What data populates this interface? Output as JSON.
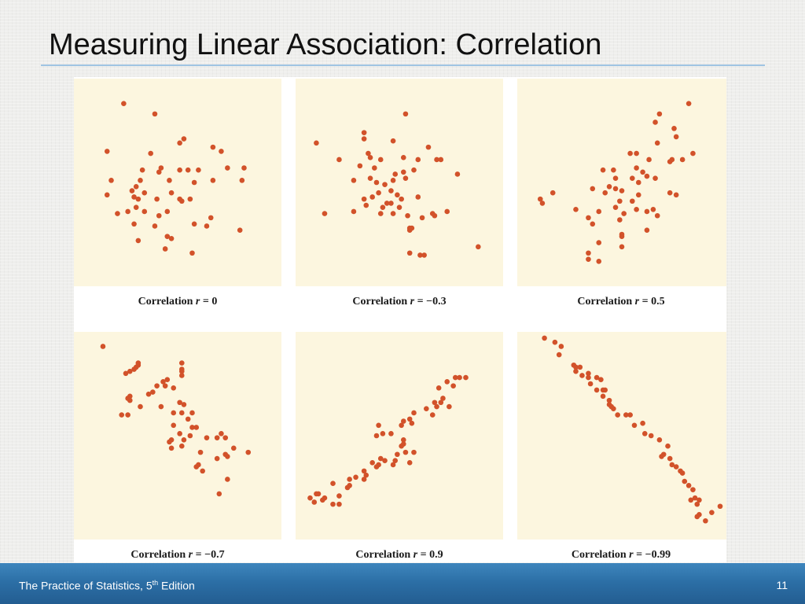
{
  "slide": {
    "title": "Measuring Linear Association: Correlation"
  },
  "footer": {
    "text": "The Practice of Statistics, 5",
    "superscript": "th",
    "text_suffix": " Edition",
    "page_number": "11"
  },
  "colors": {
    "point": "#d2522a",
    "panel_background": "#fcf6df",
    "footer_blue": "#2c6fa6",
    "title_rule": "#9fc4e3"
  },
  "chart_data": [
    {
      "type": "scatter",
      "caption_prefix": "Correlation ",
      "caption_var": "r",
      "caption_eq": " = 0",
      "xlim": [
        0,
        1
      ],
      "ylim": [
        0,
        1
      ],
      "points": [
        [
          0.24,
          0.88
        ],
        [
          0.39,
          0.83
        ],
        [
          0.53,
          0.71
        ],
        [
          0.51,
          0.69
        ],
        [
          0.67,
          0.67
        ],
        [
          0.71,
          0.65
        ],
        [
          0.16,
          0.65
        ],
        [
          0.37,
          0.64
        ],
        [
          0.74,
          0.57
        ],
        [
          0.82,
          0.57
        ],
        [
          0.33,
          0.56
        ],
        [
          0.42,
          0.57
        ],
        [
          0.41,
          0.55
        ],
        [
          0.51,
          0.56
        ],
        [
          0.55,
          0.56
        ],
        [
          0.6,
          0.56
        ],
        [
          0.18,
          0.51
        ],
        [
          0.32,
          0.51
        ],
        [
          0.46,
          0.51
        ],
        [
          0.58,
          0.5
        ],
        [
          0.67,
          0.51
        ],
        [
          0.81,
          0.51
        ],
        [
          0.3,
          0.48
        ],
        [
          0.28,
          0.46
        ],
        [
          0.34,
          0.45
        ],
        [
          0.47,
          0.45
        ],
        [
          0.16,
          0.44
        ],
        [
          0.29,
          0.43
        ],
        [
          0.31,
          0.42
        ],
        [
          0.51,
          0.42
        ],
        [
          0.52,
          0.41
        ],
        [
          0.4,
          0.42
        ],
        [
          0.56,
          0.42
        ],
        [
          0.3,
          0.38
        ],
        [
          0.26,
          0.36
        ],
        [
          0.34,
          0.36
        ],
        [
          0.21,
          0.35
        ],
        [
          0.41,
          0.34
        ],
        [
          0.45,
          0.36
        ],
        [
          0.29,
          0.3
        ],
        [
          0.39,
          0.29
        ],
        [
          0.58,
          0.3
        ],
        [
          0.64,
          0.29
        ],
        [
          0.66,
          0.33
        ],
        [
          0.8,
          0.27
        ],
        [
          0.45,
          0.24
        ],
        [
          0.47,
          0.23
        ],
        [
          0.31,
          0.22
        ],
        [
          0.57,
          0.16
        ],
        [
          0.44,
          0.18
        ]
      ]
    },
    {
      "type": "scatter",
      "caption_prefix": "Correlation ",
      "caption_var": "r",
      "caption_eq": " = −0.3",
      "xlim": [
        0,
        1
      ],
      "ylim": [
        0,
        1
      ],
      "points": [
        [
          0.53,
          0.83
        ],
        [
          0.33,
          0.74
        ],
        [
          0.33,
          0.71
        ],
        [
          0.35,
          0.64
        ],
        [
          0.36,
          0.62
        ],
        [
          0.52,
          0.62
        ],
        [
          0.41,
          0.61
        ],
        [
          0.47,
          0.7
        ],
        [
          0.1,
          0.69
        ],
        [
          0.64,
          0.67
        ],
        [
          0.59,
          0.61
        ],
        [
          0.68,
          0.61
        ],
        [
          0.7,
          0.61
        ],
        [
          0.21,
          0.61
        ],
        [
          0.31,
          0.58
        ],
        [
          0.38,
          0.57
        ],
        [
          0.52,
          0.55
        ],
        [
          0.57,
          0.56
        ],
        [
          0.36,
          0.52
        ],
        [
          0.48,
          0.54
        ],
        [
          0.53,
          0.52
        ],
        [
          0.78,
          0.54
        ],
        [
          0.47,
          0.51
        ],
        [
          0.39,
          0.5
        ],
        [
          0.43,
          0.49
        ],
        [
          0.28,
          0.51
        ],
        [
          0.4,
          0.45
        ],
        [
          0.46,
          0.46
        ],
        [
          0.49,
          0.44
        ],
        [
          0.46,
          0.4
        ],
        [
          0.37,
          0.43
        ],
        [
          0.51,
          0.42
        ],
        [
          0.59,
          0.43
        ],
        [
          0.33,
          0.42
        ],
        [
          0.44,
          0.4
        ],
        [
          0.42,
          0.38
        ],
        [
          0.5,
          0.38
        ],
        [
          0.34,
          0.39
        ],
        [
          0.66,
          0.35
        ],
        [
          0.73,
          0.36
        ],
        [
          0.47,
          0.35
        ],
        [
          0.54,
          0.34
        ],
        [
          0.41,
          0.35
        ],
        [
          0.67,
          0.34
        ],
        [
          0.28,
          0.36
        ],
        [
          0.14,
          0.35
        ],
        [
          0.61,
          0.33
        ],
        [
          0.55,
          0.28
        ],
        [
          0.55,
          0.27
        ],
        [
          0.56,
          0.28
        ],
        [
          0.88,
          0.19
        ],
        [
          0.55,
          0.16
        ],
        [
          0.6,
          0.15
        ],
        [
          0.62,
          0.15
        ]
      ]
    },
    {
      "type": "scatter",
      "caption_prefix": "Correlation ",
      "caption_var": "r",
      "caption_eq": " = 0.5",
      "xlim": [
        0,
        1
      ],
      "ylim": [
        0,
        1
      ],
      "points": [
        [
          0.82,
          0.88
        ],
        [
          0.68,
          0.83
        ],
        [
          0.66,
          0.79
        ],
        [
          0.75,
          0.76
        ],
        [
          0.76,
          0.72
        ],
        [
          0.67,
          0.69
        ],
        [
          0.54,
          0.64
        ],
        [
          0.57,
          0.64
        ],
        [
          0.63,
          0.61
        ],
        [
          0.74,
          0.61
        ],
        [
          0.79,
          0.61
        ],
        [
          0.84,
          0.64
        ],
        [
          0.73,
          0.6
        ],
        [
          0.41,
          0.56
        ],
        [
          0.46,
          0.56
        ],
        [
          0.57,
          0.57
        ],
        [
          0.6,
          0.55
        ],
        [
          0.47,
          0.52
        ],
        [
          0.55,
          0.52
        ],
        [
          0.58,
          0.5
        ],
        [
          0.62,
          0.53
        ],
        [
          0.66,
          0.52
        ],
        [
          0.17,
          0.45
        ],
        [
          0.36,
          0.47
        ],
        [
          0.44,
          0.48
        ],
        [
          0.47,
          0.47
        ],
        [
          0.5,
          0.46
        ],
        [
          0.42,
          0.45
        ],
        [
          0.58,
          0.44
        ],
        [
          0.73,
          0.45
        ],
        [
          0.76,
          0.44
        ],
        [
          0.11,
          0.42
        ],
        [
          0.49,
          0.41
        ],
        [
          0.55,
          0.41
        ],
        [
          0.12,
          0.4
        ],
        [
          0.47,
          0.38
        ],
        [
          0.57,
          0.37
        ],
        [
          0.65,
          0.37
        ],
        [
          0.62,
          0.36
        ],
        [
          0.28,
          0.37
        ],
        [
          0.39,
          0.36
        ],
        [
          0.51,
          0.35
        ],
        [
          0.67,
          0.34
        ],
        [
          0.34,
          0.33
        ],
        [
          0.36,
          0.3
        ],
        [
          0.49,
          0.32
        ],
        [
          0.62,
          0.27
        ],
        [
          0.5,
          0.25
        ],
        [
          0.5,
          0.24
        ],
        [
          0.39,
          0.21
        ],
        [
          0.5,
          0.19
        ],
        [
          0.34,
          0.16
        ],
        [
          0.34,
          0.13
        ],
        [
          0.39,
          0.12
        ]
      ]
    },
    {
      "type": "scatter",
      "caption_prefix": "Correlation ",
      "caption_var": "r",
      "caption_eq": " = −0.7",
      "xlim": [
        0,
        1
      ],
      "ylim": [
        0,
        1
      ],
      "points": [
        [
          0.14,
          0.93
        ],
        [
          0.31,
          0.85
        ],
        [
          0.31,
          0.84
        ],
        [
          0.3,
          0.83
        ],
        [
          0.29,
          0.82
        ],
        [
          0.27,
          0.81
        ],
        [
          0.25,
          0.8
        ],
        [
          0.52,
          0.85
        ],
        [
          0.52,
          0.82
        ],
        [
          0.52,
          0.81
        ],
        [
          0.52,
          0.79
        ],
        [
          0.45,
          0.77
        ],
        [
          0.43,
          0.76
        ],
        [
          0.4,
          0.74
        ],
        [
          0.44,
          0.74
        ],
        [
          0.48,
          0.73
        ],
        [
          0.27,
          0.69
        ],
        [
          0.38,
          0.71
        ],
        [
          0.36,
          0.7
        ],
        [
          0.27,
          0.67
        ],
        [
          0.26,
          0.68
        ],
        [
          0.51,
          0.66
        ],
        [
          0.42,
          0.64
        ],
        [
          0.53,
          0.65
        ],
        [
          0.57,
          0.61
        ],
        [
          0.48,
          0.61
        ],
        [
          0.52,
          0.61
        ],
        [
          0.32,
          0.64
        ],
        [
          0.23,
          0.6
        ],
        [
          0.26,
          0.6
        ],
        [
          0.55,
          0.58
        ],
        [
          0.48,
          0.55
        ],
        [
          0.57,
          0.54
        ],
        [
          0.59,
          0.54
        ],
        [
          0.51,
          0.51
        ],
        [
          0.56,
          0.5
        ],
        [
          0.64,
          0.49
        ],
        [
          0.53,
          0.48
        ],
        [
          0.47,
          0.48
        ],
        [
          0.46,
          0.47
        ],
        [
          0.71,
          0.51
        ],
        [
          0.73,
          0.49
        ],
        [
          0.69,
          0.49
        ],
        [
          0.52,
          0.45
        ],
        [
          0.47,
          0.44
        ],
        [
          0.77,
          0.44
        ],
        [
          0.84,
          0.42
        ],
        [
          0.61,
          0.42
        ],
        [
          0.73,
          0.41
        ],
        [
          0.74,
          0.4
        ],
        [
          0.69,
          0.39
        ],
        [
          0.6,
          0.36
        ],
        [
          0.59,
          0.35
        ],
        [
          0.74,
          0.29
        ],
        [
          0.62,
          0.33
        ],
        [
          0.7,
          0.22
        ]
      ]
    },
    {
      "type": "scatter",
      "caption_prefix": "Correlation ",
      "caption_var": "r",
      "caption_eq": " = 0.9",
      "xlim": [
        0,
        1
      ],
      "ylim": [
        0,
        1
      ],
      "points": [
        [
          0.82,
          0.78
        ],
        [
          0.79,
          0.78
        ],
        [
          0.77,
          0.78
        ],
        [
          0.76,
          0.74
        ],
        [
          0.73,
          0.76
        ],
        [
          0.69,
          0.73
        ],
        [
          0.71,
          0.68
        ],
        [
          0.7,
          0.66
        ],
        [
          0.74,
          0.64
        ],
        [
          0.67,
          0.66
        ],
        [
          0.68,
          0.64
        ],
        [
          0.63,
          0.63
        ],
        [
          0.66,
          0.6
        ],
        [
          0.57,
          0.61
        ],
        [
          0.55,
          0.58
        ],
        [
          0.56,
          0.56
        ],
        [
          0.52,
          0.57
        ],
        [
          0.51,
          0.55
        ],
        [
          0.4,
          0.55
        ],
        [
          0.42,
          0.51
        ],
        [
          0.39,
          0.5
        ],
        [
          0.46,
          0.51
        ],
        [
          0.52,
          0.48
        ],
        [
          0.51,
          0.45
        ],
        [
          0.52,
          0.46
        ],
        [
          0.53,
          0.42
        ],
        [
          0.49,
          0.41
        ],
        [
          0.57,
          0.42
        ],
        [
          0.55,
          0.37
        ],
        [
          0.43,
          0.38
        ],
        [
          0.48,
          0.38
        ],
        [
          0.47,
          0.36
        ],
        [
          0.41,
          0.39
        ],
        [
          0.37,
          0.37
        ],
        [
          0.4,
          0.36
        ],
        [
          0.39,
          0.35
        ],
        [
          0.33,
          0.33
        ],
        [
          0.29,
          0.3
        ],
        [
          0.26,
          0.29
        ],
        [
          0.34,
          0.31
        ],
        [
          0.33,
          0.29
        ],
        [
          0.18,
          0.27
        ],
        [
          0.26,
          0.26
        ],
        [
          0.25,
          0.25
        ],
        [
          0.21,
          0.21
        ],
        [
          0.1,
          0.22
        ],
        [
          0.07,
          0.2
        ],
        [
          0.13,
          0.19
        ],
        [
          0.14,
          0.2
        ],
        [
          0.18,
          0.17
        ],
        [
          0.21,
          0.17
        ],
        [
          0.11,
          0.22
        ],
        [
          0.09,
          0.18
        ]
      ]
    },
    {
      "type": "scatter",
      "caption_prefix": "Correlation ",
      "caption_var": "r",
      "caption_eq": " = −0.99",
      "xlim": [
        0,
        1
      ],
      "ylim": [
        0,
        1
      ],
      "points": [
        [
          0.13,
          0.97
        ],
        [
          0.18,
          0.95
        ],
        [
          0.21,
          0.93
        ],
        [
          0.2,
          0.89
        ],
        [
          0.27,
          0.84
        ],
        [
          0.28,
          0.83
        ],
        [
          0.3,
          0.83
        ],
        [
          0.28,
          0.81
        ],
        [
          0.31,
          0.79
        ],
        [
          0.34,
          0.8
        ],
        [
          0.34,
          0.78
        ],
        [
          0.38,
          0.78
        ],
        [
          0.4,
          0.77
        ],
        [
          0.35,
          0.75
        ],
        [
          0.38,
          0.72
        ],
        [
          0.41,
          0.72
        ],
        [
          0.42,
          0.72
        ],
        [
          0.41,
          0.69
        ],
        [
          0.44,
          0.67
        ],
        [
          0.44,
          0.65
        ],
        [
          0.46,
          0.63
        ],
        [
          0.45,
          0.64
        ],
        [
          0.48,
          0.6
        ],
        [
          0.52,
          0.6
        ],
        [
          0.54,
          0.6
        ],
        [
          0.56,
          0.55
        ],
        [
          0.6,
          0.56
        ],
        [
          0.61,
          0.51
        ],
        [
          0.64,
          0.5
        ],
        [
          0.68,
          0.48
        ],
        [
          0.72,
          0.45
        ],
        [
          0.7,
          0.41
        ],
        [
          0.69,
          0.4
        ],
        [
          0.73,
          0.39
        ],
        [
          0.76,
          0.35
        ],
        [
          0.74,
          0.36
        ],
        [
          0.78,
          0.33
        ],
        [
          0.79,
          0.32
        ],
        [
          0.8,
          0.28
        ],
        [
          0.82,
          0.26
        ],
        [
          0.84,
          0.24
        ],
        [
          0.85,
          0.2
        ],
        [
          0.83,
          0.19
        ],
        [
          0.87,
          0.19
        ],
        [
          0.86,
          0.17
        ],
        [
          0.9,
          0.09
        ],
        [
          0.93,
          0.13
        ],
        [
          0.97,
          0.16
        ],
        [
          0.86,
          0.11
        ],
        [
          0.87,
          0.12
        ]
      ]
    }
  ]
}
